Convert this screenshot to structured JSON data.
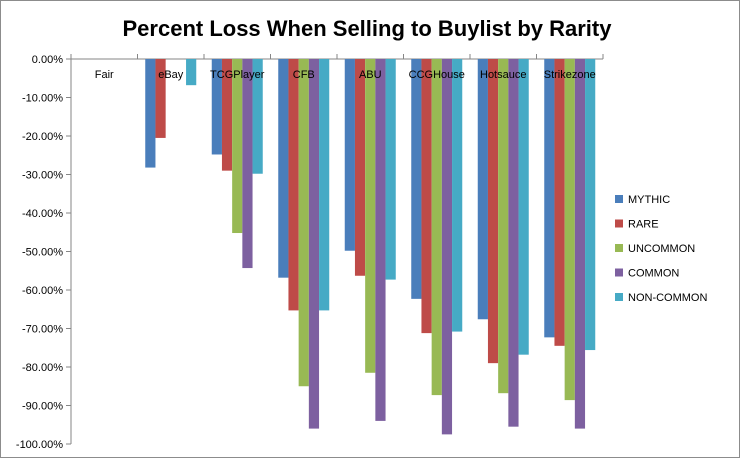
{
  "chart_data": {
    "type": "bar",
    "title": "Percent Loss When Selling to Buylist by Rarity",
    "xlabel": "",
    "ylabel": "",
    "ylim": [
      -100,
      0
    ],
    "y_ticks": [
      "0.00%",
      "-10.00%",
      "-20.00%",
      "-30.00%",
      "-40.00%",
      "-50.00%",
      "-60.00%",
      "-70.00%",
      "-80.00%",
      "-90.00%",
      "-100.00%"
    ],
    "categories": [
      "Fair",
      "eBay",
      "TCGPlayer",
      "CFB",
      "ABU",
      "CCGHouse",
      "Hotsauce",
      "Strikezone"
    ],
    "legend_position": "right",
    "grid": false,
    "series": [
      {
        "name": "MYTHIC",
        "color": "#4a7ebb",
        "values": [
          0,
          -28.2,
          -24.8,
          -56.8,
          -49.8,
          -62.3,
          -67.6,
          -72.3
        ]
      },
      {
        "name": "RARE",
        "color": "#be4b48",
        "values": [
          0,
          -20.5,
          -29.0,
          -65.3,
          -56.3,
          -71.2,
          -79.0,
          -74.5
        ]
      },
      {
        "name": "UNCOMMON",
        "color": "#98b954",
        "values": [
          0,
          0,
          -45.2,
          -85.0,
          -81.5,
          -87.3,
          -86.8,
          -88.6
        ]
      },
      {
        "name": "COMMON",
        "color": "#7d60a0",
        "values": [
          0,
          0,
          -54.3,
          -96.0,
          -94.0,
          -97.5,
          -95.5,
          -96.0
        ]
      },
      {
        "name": "NON-COMMON",
        "color": "#46aac5",
        "values": [
          0,
          -6.8,
          -29.8,
          -65.3,
          -57.3,
          -70.8,
          -76.8,
          -75.6
        ]
      }
    ]
  }
}
